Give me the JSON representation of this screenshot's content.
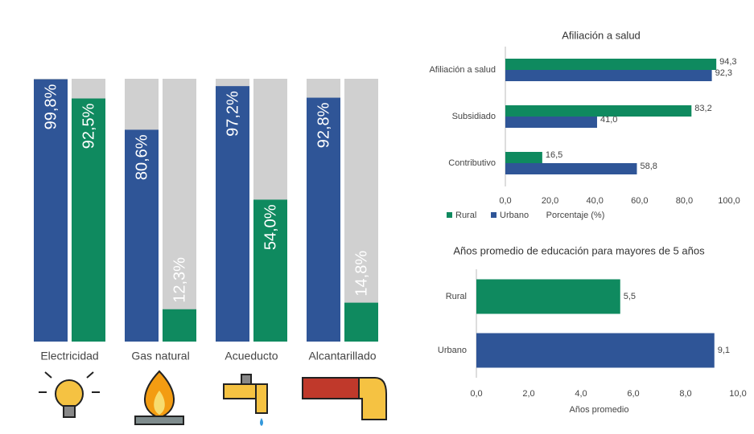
{
  "chart_data": [
    {
      "type": "bar",
      "categories": [
        "Electricidad",
        "Gas natural",
        "Acueducto",
        "Alcantarillado"
      ],
      "series": [
        {
          "color": "#2f5597",
          "values": [
            99.8,
            80.6,
            97.2,
            92.8
          ],
          "value_labels": [
            "99,8%",
            "80,6%",
            "97,2%",
            "92,8%"
          ]
        },
        {
          "color": "#0f8a5f",
          "values": [
            92.5,
            12.3,
            54.0,
            14.8
          ],
          "value_labels": [
            "92,5%",
            "12,3%",
            "54,0%",
            "14,8%"
          ]
        }
      ],
      "ylim": [
        0,
        100
      ],
      "background_color": "#d0d0d0"
    },
    {
      "type": "barh",
      "title": "Afiliación a salud",
      "categories": [
        "Afiliación a salud",
        "Subsidiado",
        "Contributivo"
      ],
      "series": [
        {
          "name": "Rural",
          "color": "#0f8a5f",
          "values": [
            94.3,
            83.2,
            16.5
          ],
          "value_labels": [
            "94,3",
            "83,2",
            "16,5"
          ]
        },
        {
          "name": "Urbano",
          "color": "#2f5597",
          "values": [
            92.3,
            41.0,
            58.8
          ],
          "value_labels": [
            "92,3",
            "41,0",
            "58,8"
          ]
        }
      ],
      "xlim": [
        0,
        100
      ],
      "xticks": [
        {
          "value": 0,
          "label": "0,0"
        },
        {
          "value": 20,
          "label": "20,0"
        },
        {
          "value": 40,
          "label": "40,0"
        },
        {
          "value": 60,
          "label": "60,0"
        },
        {
          "value": 80,
          "label": "80,0"
        },
        {
          "value": 100,
          "label": "100,0"
        }
      ],
      "x_label": "Porcentaje (%)",
      "legend": "bottom-left"
    },
    {
      "type": "barh",
      "title": "Años promedio de educación para mayores de 5 años",
      "categories": [
        "Rural",
        "Urbano"
      ],
      "values": [
        5.5,
        9.1
      ],
      "value_labels": [
        "5,5",
        "9,1"
      ],
      "colors": [
        "#0f8a5f",
        "#2f5597"
      ],
      "xlim": [
        0,
        10
      ],
      "xticks": [
        {
          "value": 0,
          "label": "0,0"
        },
        {
          "value": 2,
          "label": "2,0"
        },
        {
          "value": 4,
          "label": "4,0"
        },
        {
          "value": 6,
          "label": "6,0"
        },
        {
          "value": 8,
          "label": "8,0"
        },
        {
          "value": 10,
          "label": "10,0"
        }
      ],
      "x_label": "Años promedio"
    }
  ]
}
